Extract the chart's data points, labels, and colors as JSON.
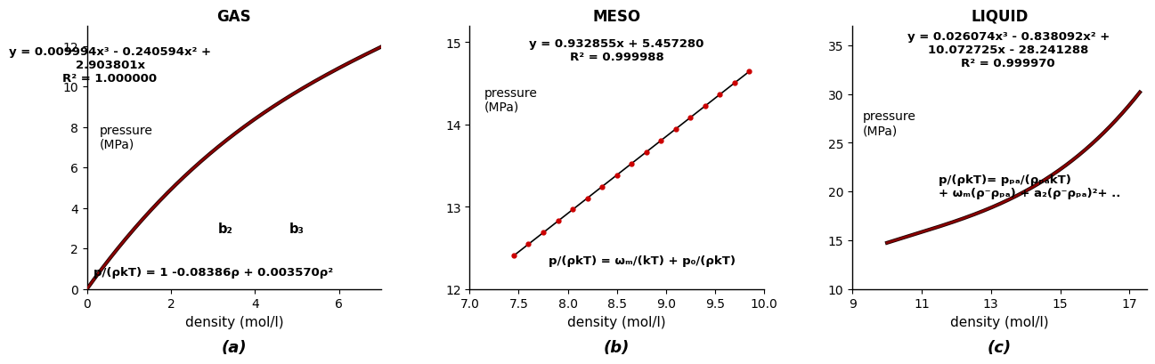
{
  "panels": [
    {
      "title": "GAS",
      "xlabel": "density (mol/l)",
      "xlim": [
        0,
        7
      ],
      "ylim": [
        0,
        13
      ],
      "xticks": [
        0,
        2,
        4,
        6
      ],
      "yticks": [
        0,
        2,
        4,
        6,
        8,
        10,
        12
      ],
      "poly_coeffs": [
        0.009994,
        -0.240594,
        2.903801,
        0.0
      ],
      "x_data_start": 0.01,
      "x_data_end": 7.0,
      "has_dots": false,
      "dot_x": [],
      "equation_text": "y = 0.009994x³ - 0.240594x² +\n2.903801x\nR² = 1.000000",
      "eq_xa": 0.55,
      "eq_ya": 12.0,
      "ylabel_text": "pressure\n(MPa)",
      "ylabel_xa": 0.3,
      "ylabel_ya": 7.5,
      "ann1_text": "p/(ρkT) = 1 -0.08386ρ + 0.003570ρ²",
      "ann1_xa": 0.15,
      "ann1_ya": 0.85,
      "ann2_text": "b₂",
      "ann2_xa": 3.3,
      "ann2_ya": 3.0,
      "ann3_text": "b₃",
      "ann3_xa": 5.0,
      "ann3_ya": 3.0,
      "label": "(a)"
    },
    {
      "title": "MESO",
      "xlabel": "density (mol/l)",
      "xlim": [
        7,
        10
      ],
      "ylim": [
        12,
        15.2
      ],
      "xticks": [
        7,
        7.5,
        8,
        8.5,
        9,
        9.5,
        10
      ],
      "yticks": [
        12,
        13,
        14,
        15
      ],
      "poly_coeffs": [
        0.0,
        0.0,
        0.932855,
        5.45728
      ],
      "x_data_start": 7.45,
      "x_data_end": 9.85,
      "has_dots": true,
      "dot_x": [
        7.45,
        7.6,
        7.75,
        7.9,
        8.05,
        8.2,
        8.35,
        8.5,
        8.65,
        8.8,
        8.95,
        9.1,
        9.25,
        9.4,
        9.55,
        9.7,
        9.85
      ],
      "equation_text": "y = 0.932855x + 5.457280\nR² = 0.999988",
      "eq_xa": 8.5,
      "eq_ya": 15.05,
      "ylabel_text": "pressure\n(MPa)",
      "ylabel_xa": 7.15,
      "ylabel_ya": 14.3,
      "ann1_text": "p/(ρkT) = ωₘ/(kT) + p₀/(ρkT)",
      "ann1_xa": 7.8,
      "ann1_ya": 12.35,
      "ann2_text": "",
      "ann2_xa": 0,
      "ann2_ya": 0,
      "ann3_text": "",
      "ann3_xa": 0,
      "ann3_ya": 0,
      "label": "(b)"
    },
    {
      "title": "LIQUID",
      "xlabel": "density (mol/l)",
      "xlim": [
        9,
        17.5
      ],
      "ylim": [
        10,
        37
      ],
      "xticks": [
        9,
        11,
        13,
        15,
        17
      ],
      "yticks": [
        10,
        15,
        20,
        25,
        30,
        35
      ],
      "poly_coeffs": [
        0.026074,
        -0.838092,
        10.072725,
        -28.241288
      ],
      "x_data_start": 10.0,
      "x_data_end": 17.3,
      "has_dots": false,
      "dot_x": [],
      "equation_text": "y = 0.026074x³ - 0.838092x² +\n10.072725x - 28.241288\nR² = 0.999970",
      "eq_xa": 13.5,
      "eq_ya": 36.5,
      "ylabel_text": "pressure\n(MPa)",
      "ylabel_xa": 9.3,
      "ylabel_ya": 27.0,
      "ann1_text": "p/(ρkT)= pₚₐ/(ρₚₐkT)\n+ ωₘ(ρ⁻ρₚₐ) + a₂(ρ⁻ρₚₐ)²+ ..",
      "ann1_xa": 11.5,
      "ann1_ya": 20.5,
      "ann2_text": "",
      "ann2_xa": 0,
      "ann2_ya": 0,
      "ann3_text": "",
      "ann3_xa": 0,
      "ann3_ya": 0,
      "label": "(c)"
    }
  ],
  "bg_color": "#ffffff",
  "title_fontsize": 12,
  "tick_fontsize": 10,
  "eq_fontsize": 9.5,
  "ann_fontsize": 9.5,
  "ylabel_fontsize": 10,
  "xlabel_fontsize": 11,
  "label_fontsize": 13
}
